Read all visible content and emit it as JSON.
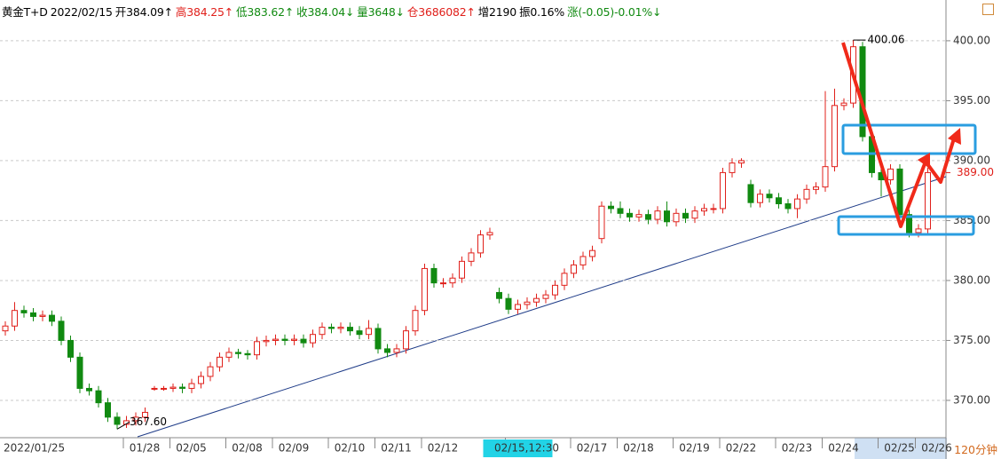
{
  "header": {
    "items": [
      {
        "text": "黄金T+D",
        "color": "#000000"
      },
      {
        "text": "2022/02/15",
        "color": "#000000"
      },
      {
        "text": "开384.09↑",
        "color": "#000000"
      },
      {
        "text": "高384.25↑",
        "color": "#e0201b"
      },
      {
        "text": "低383.62↑",
        "color": "#118a11"
      },
      {
        "text": "收384.04↓",
        "color": "#118a11"
      },
      {
        "text": "量3648↓",
        "color": "#118a11"
      },
      {
        "text": "仓3686082↑",
        "color": "#e0201b"
      },
      {
        "text": "增2190",
        "color": "#000000"
      },
      {
        "text": "振0.16%",
        "color": "#000000"
      },
      {
        "text": "涨(-0.05)-0.01%↓",
        "color": "#118a11"
      }
    ]
  },
  "period": "120分钟",
  "chart_data": {
    "type": "candlestick",
    "up_color": "#e0201b",
    "down_color": "#118a11",
    "categories": [
      "2022/01/25",
      null,
      null,
      null,
      null,
      null,
      null,
      null,
      null,
      null,
      null,
      null,
      null,
      null,
      "01/28",
      null,
      null,
      null,
      null,
      "02/05",
      null,
      null,
      null,
      null,
      null,
      "02/08",
      null,
      null,
      null,
      null,
      "02/09",
      null,
      null,
      null,
      null,
      null,
      "02/10",
      null,
      null,
      null,
      null,
      "02/11",
      null,
      null,
      null,
      null,
      "02/12",
      null,
      null,
      null,
      null,
      null,
      null,
      null,
      null,
      "02/15,12:30",
      null,
      null,
      null,
      null,
      null,
      null,
      "02/17",
      null,
      null,
      null,
      null,
      "02/18",
      null,
      null,
      null,
      null,
      null,
      "02/19",
      null,
      null,
      null,
      null,
      "02/22",
      null,
      null,
      null,
      null,
      null,
      "02/23",
      null,
      null,
      null,
      null,
      "02/24",
      null,
      null,
      null,
      null,
      null,
      "02/25",
      null,
      null,
      null,
      "02/26"
    ],
    "open": [
      375.8,
      376.2,
      377.5,
      377.3,
      377.0,
      377.1,
      376.6,
      375.0,
      373.6,
      371.0,
      370.8,
      369.8,
      368.6,
      368.0,
      368.3,
      368.6,
      371.0,
      371.0,
      371.0,
      371.1,
      371.0,
      371.4,
      372.0,
      372.8,
      373.6,
      374.0,
      373.9,
      373.8,
      374.9,
      375.0,
      375.1,
      375.0,
      375.1,
      374.8,
      375.5,
      376.1,
      376.0,
      376.1,
      375.8,
      375.5,
      376.0,
      374.3,
      374.0,
      374.3,
      375.8,
      377.5,
      381.0,
      379.8,
      379.8,
      380.2,
      381.6,
      382.3,
      383.8,
      379.0,
      378.5,
      377.6,
      378.0,
      378.2,
      378.5,
      378.8,
      379.6,
      380.6,
      381.3,
      382.0,
      383.5,
      386.2,
      386.0,
      385.6,
      385.3,
      385.5,
      385.1,
      385.8,
      384.9,
      385.6,
      385.2,
      385.8,
      386.0,
      386.0,
      389.0,
      389.8,
      388.0,
      386.5,
      387.2,
      386.9,
      386.4,
      386.0,
      386.8,
      387.6,
      387.8,
      389.5,
      394.6,
      394.8,
      399.5,
      392.0,
      389.0,
      388.4,
      389.3,
      385.5,
      384.0,
      384.3
    ],
    "high": [
      376.6,
      378.2,
      377.9,
      377.7,
      377.5,
      377.5,
      377.0,
      375.4,
      374.0,
      371.4,
      371.2,
      370.2,
      369.0,
      368.7,
      369.0,
      369.4,
      371.2,
      371.2,
      371.4,
      371.4,
      371.8,
      372.4,
      373.2,
      374.0,
      374.4,
      374.3,
      374.2,
      375.3,
      375.4,
      375.5,
      375.5,
      375.5,
      375.5,
      375.9,
      376.5,
      376.4,
      376.5,
      376.5,
      376.2,
      376.7,
      376.4,
      374.7,
      374.7,
      376.2,
      377.9,
      381.4,
      381.4,
      380.2,
      380.6,
      382.0,
      382.7,
      384.2,
      384.4,
      379.4,
      378.9,
      378.4,
      378.6,
      378.9,
      379.2,
      380.0,
      381.0,
      381.7,
      382.4,
      382.9,
      386.6,
      386.6,
      386.6,
      386.0,
      385.9,
      385.9,
      386.2,
      386.6,
      386.0,
      386.0,
      386.2,
      386.4,
      386.4,
      389.4,
      390.2,
      390.2,
      388.4,
      387.6,
      387.6,
      387.3,
      386.8,
      387.2,
      388.0,
      388.2,
      395.8,
      396.0,
      395.2,
      400.06,
      399.9,
      392.4,
      389.8,
      389.7,
      389.7,
      385.9,
      384.7,
      389.4
    ],
    "low": [
      375.4,
      375.8,
      376.9,
      376.6,
      376.6,
      376.2,
      374.6,
      373.2,
      370.6,
      370.4,
      369.4,
      368.2,
      367.6,
      367.7,
      367.9,
      368.2,
      370.8,
      370.8,
      370.7,
      370.6,
      370.6,
      371.0,
      371.6,
      372.4,
      373.2,
      373.5,
      373.4,
      373.4,
      374.5,
      374.6,
      374.6,
      374.6,
      374.4,
      374.4,
      375.1,
      375.6,
      375.6,
      375.4,
      375.1,
      375.1,
      373.9,
      373.6,
      373.6,
      373.9,
      375.4,
      377.1,
      379.4,
      379.4,
      379.4,
      379.8,
      381.2,
      381.9,
      383.4,
      378.1,
      377.2,
      377.2,
      377.6,
      377.8,
      378.1,
      378.4,
      379.2,
      380.2,
      380.9,
      381.6,
      383.1,
      385.6,
      385.2,
      384.9,
      384.9,
      384.7,
      384.7,
      384.5,
      384.5,
      384.8,
      384.8,
      385.4,
      385.6,
      385.6,
      388.6,
      389.4,
      386.1,
      386.1,
      386.5,
      386.0,
      385.6,
      385.2,
      386.4,
      387.2,
      387.4,
      389.1,
      394.2,
      394.4,
      391.6,
      388.6,
      387.0,
      388.0,
      385.1,
      383.6,
      383.6,
      383.9
    ],
    "close": [
      376.2,
      377.5,
      377.3,
      377.0,
      377.1,
      376.6,
      375.0,
      373.6,
      371.0,
      370.8,
      369.8,
      368.6,
      368.0,
      368.3,
      368.6,
      369.0,
      371.0,
      371.0,
      371.1,
      371.0,
      371.4,
      372.0,
      372.8,
      373.6,
      374.0,
      373.9,
      373.8,
      374.9,
      375.0,
      375.1,
      375.0,
      375.1,
      374.8,
      375.5,
      376.1,
      376.0,
      376.1,
      375.8,
      375.5,
      376.0,
      374.3,
      374.0,
      374.3,
      375.8,
      377.5,
      381.0,
      379.8,
      379.8,
      380.2,
      381.6,
      382.3,
      383.8,
      384.0,
      378.5,
      377.6,
      378.0,
      378.2,
      378.5,
      378.8,
      379.6,
      380.6,
      381.3,
      382.0,
      382.5,
      386.2,
      386.0,
      385.6,
      385.3,
      385.5,
      385.1,
      385.8,
      384.9,
      385.6,
      385.2,
      385.8,
      386.0,
      386.0,
      389.0,
      389.8,
      390.0,
      386.5,
      387.2,
      386.9,
      386.4,
      386.0,
      386.8,
      387.6,
      387.8,
      389.5,
      394.6,
      394.8,
      399.5,
      392.0,
      389.0,
      388.4,
      389.3,
      385.5,
      384.0,
      384.3,
      389.0
    ],
    "ylim": [
      366.96,
      403.4
    ],
    "yticks": [
      {
        "value": 370,
        "label": "370.00"
      },
      {
        "value": 375,
        "label": "375.00"
      },
      {
        "value": 380,
        "label": "380.00"
      },
      {
        "value": 385,
        "label": "385.00"
      },
      {
        "value": 390,
        "label": "390.00"
      },
      {
        "value": 395,
        "label": "395.00"
      },
      {
        "value": 400,
        "label": "400.00"
      }
    ],
    "grid": true,
    "max_label": {
      "value": 400.06,
      "label": "400.06"
    },
    "min_label": {
      "value": 367.6,
      "label": "367.60"
    },
    "last_price": {
      "value": 389.0,
      "label": "389.00",
      "color": "#e0201b"
    }
  }
}
